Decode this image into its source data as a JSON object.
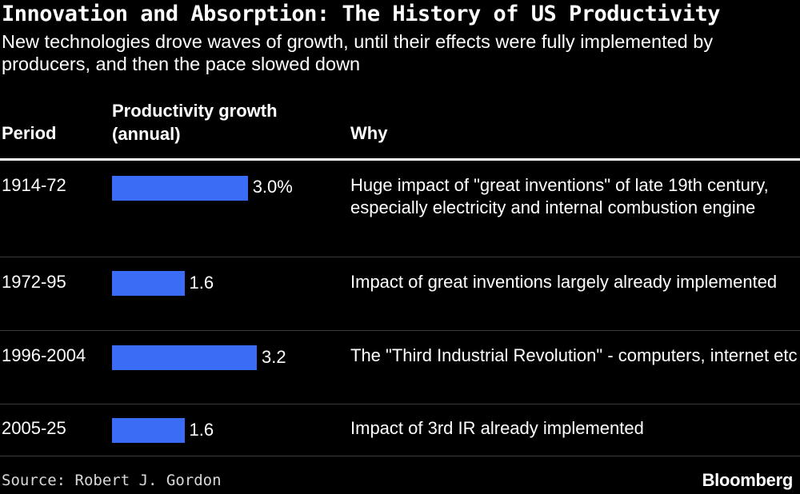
{
  "title": "Innovation and Absorption: The History of US Productivity",
  "subtitle": "New technologies drove waves of growth, until their effects were fully implemented by producers, and then the pace slowed down",
  "columns": {
    "period": "Period",
    "growth": "Productivity growth (annual)",
    "why": "Why"
  },
  "chart_data": {
    "type": "bar",
    "orientation": "horizontal",
    "title": "Innovation and Absorption: The History of US Productivity",
    "subtitle": "New technologies drove waves of growth, until their effects were fully implemented by producers, and then the pace slowed down",
    "xlabel": "Productivity growth (annual)",
    "ylabel": "Period",
    "unit": "%",
    "xlim": [
      0,
      3.2
    ],
    "categories": [
      "1914-72",
      "1972-95",
      "1996-2004",
      "2005-25"
    ],
    "values": [
      3.0,
      1.6,
      3.2,
      1.6
    ],
    "value_labels": [
      "3.0%",
      "1.6",
      "3.2",
      "1.6"
    ],
    "bar_color": "#3b6cf5"
  },
  "rows": [
    {
      "period": "1914-72",
      "value_label": "3.0%",
      "why": "Huge impact of \"great inventions\" of late 19th century, especially electricity and internal combustion engine"
    },
    {
      "period": "1972-95",
      "value_label": "1.6",
      "why": "Impact of great inventions largely already implemented"
    },
    {
      "period": "1996-2004",
      "value_label": "3.2",
      "why": "The \"Third Industrial Revolution\" - computers, internet etc"
    },
    {
      "period": "2005-25",
      "value_label": "1.6",
      "why": "Impact of 3rd IR already implemented"
    }
  ],
  "source": "Source: Robert J. Gordon",
  "brand": "Bloomberg",
  "colors": {
    "background": "#000000",
    "text": "#ffffff",
    "bar": "#3b6cf5",
    "rule": "#ffffff",
    "row_divider": "#3a3a3a"
  }
}
